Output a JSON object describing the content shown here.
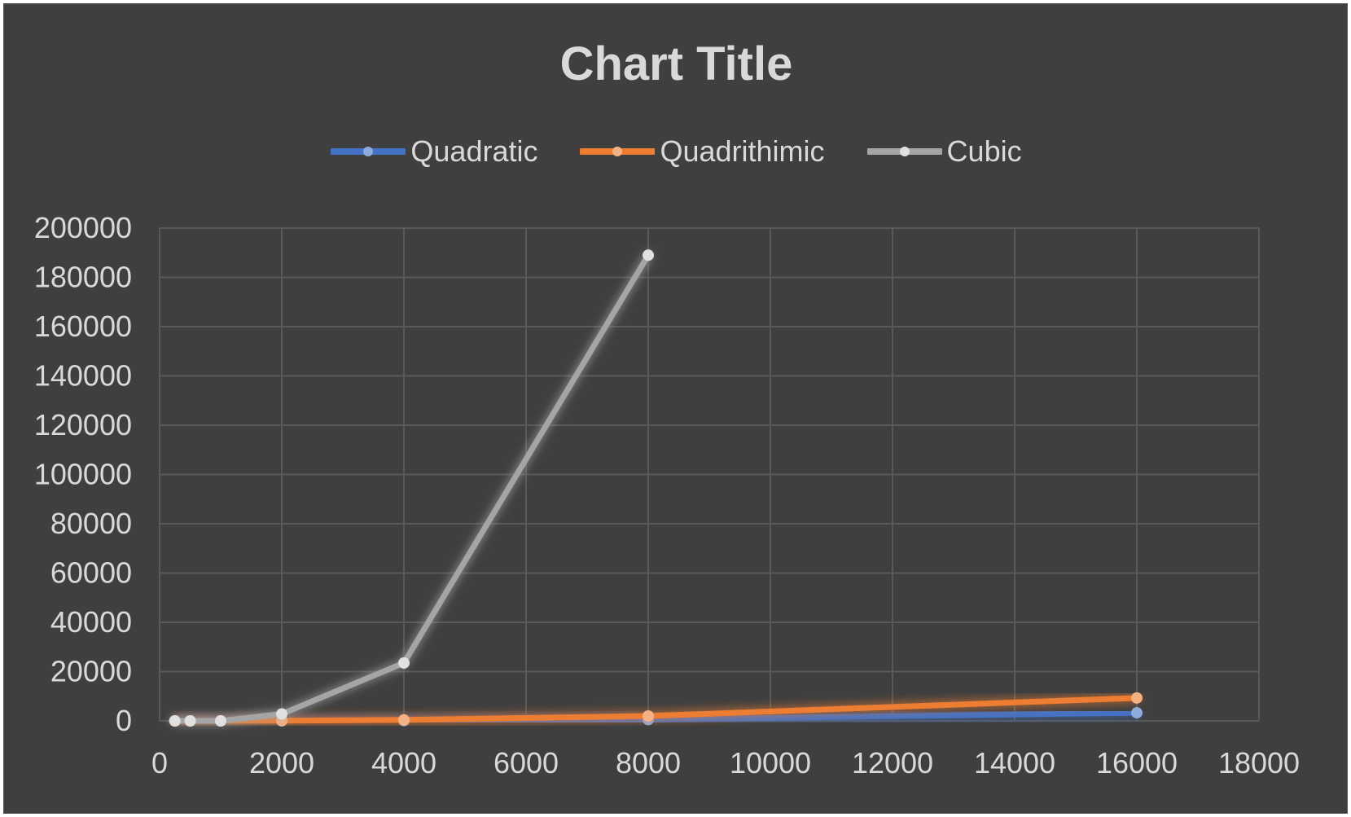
{
  "chart_data": {
    "type": "line",
    "title": "Chart Title",
    "xlabel": "",
    "ylabel": "",
    "xlim": [
      0,
      18000
    ],
    "ylim": [
      0,
      200000
    ],
    "xticks": [
      0,
      2000,
      4000,
      6000,
      8000,
      10000,
      12000,
      14000,
      16000,
      18000
    ],
    "yticks": [
      0,
      20000,
      40000,
      60000,
      80000,
      100000,
      120000,
      140000,
      160000,
      180000,
      200000
    ],
    "grid": true,
    "legend_position": "top",
    "series": [
      {
        "name": "Quadratic",
        "color": "#4472c4",
        "points": [
          [
            250,
            0
          ],
          [
            500,
            0
          ],
          [
            1000,
            0
          ],
          [
            2000,
            0
          ],
          [
            4000,
            100
          ],
          [
            8000,
            500
          ],
          [
            16000,
            3300
          ]
        ]
      },
      {
        "name": "Quadrithimic",
        "color": "#ed7d31",
        "points": [
          [
            250,
            0
          ],
          [
            500,
            0
          ],
          [
            1000,
            0
          ],
          [
            2000,
            100
          ],
          [
            4000,
            400
          ],
          [
            8000,
            2000
          ],
          [
            16000,
            9300
          ]
        ]
      },
      {
        "name": "Cubic",
        "color": "#a5a5a5",
        "points": [
          [
            250,
            0
          ],
          [
            500,
            0
          ],
          [
            1000,
            0
          ],
          [
            2000,
            2800
          ],
          [
            4000,
            23500
          ],
          [
            8000,
            189000
          ]
        ]
      }
    ]
  }
}
